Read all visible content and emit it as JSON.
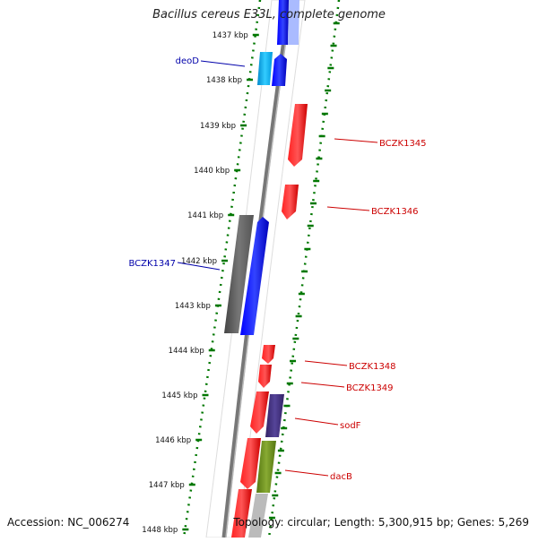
{
  "title": "Bacillus cereus E33L, complete genome",
  "footer": {
    "accession": "Accession: NC_006274",
    "stats": "Topology: circular; Length: 5,300,915 bp; Genes: 5,269"
  },
  "kbp_ticks": [
    "1437 kbp",
    "1438 kbp",
    "1439 kbp",
    "1440 kbp",
    "1441 kbp",
    "1442 kbp",
    "1443 kbp",
    "1444 kbp",
    "1445 kbp",
    "1446 kbp",
    "1447 kbp",
    "1448 kbp"
  ],
  "gene_labels": {
    "left": [
      {
        "text": "deoD",
        "color": "#0000aa"
      },
      {
        "text": "BCZK1347",
        "color": "#0000aa"
      }
    ],
    "right": [
      {
        "text": "BCZK1345",
        "color": "#cc0000"
      },
      {
        "text": "BCZK1346",
        "color": "#cc0000"
      },
      {
        "text": "BCZK1348",
        "color": "#cc0000"
      },
      {
        "text": "BCZK1349",
        "color": "#cc0000"
      },
      {
        "text": "sodF",
        "color": "#cc0000"
      },
      {
        "text": "dacB",
        "color": "#cc0000"
      }
    ]
  },
  "colors": {
    "forward_gene": "#0000ff",
    "reverse_gene": "#ff0000",
    "backbone": "#777777",
    "tick_green": "#007700",
    "feature_cyan": "#22bbee",
    "feature_gray": "#666666",
    "feature_navy": "#443388",
    "feature_olive": "#668822"
  }
}
